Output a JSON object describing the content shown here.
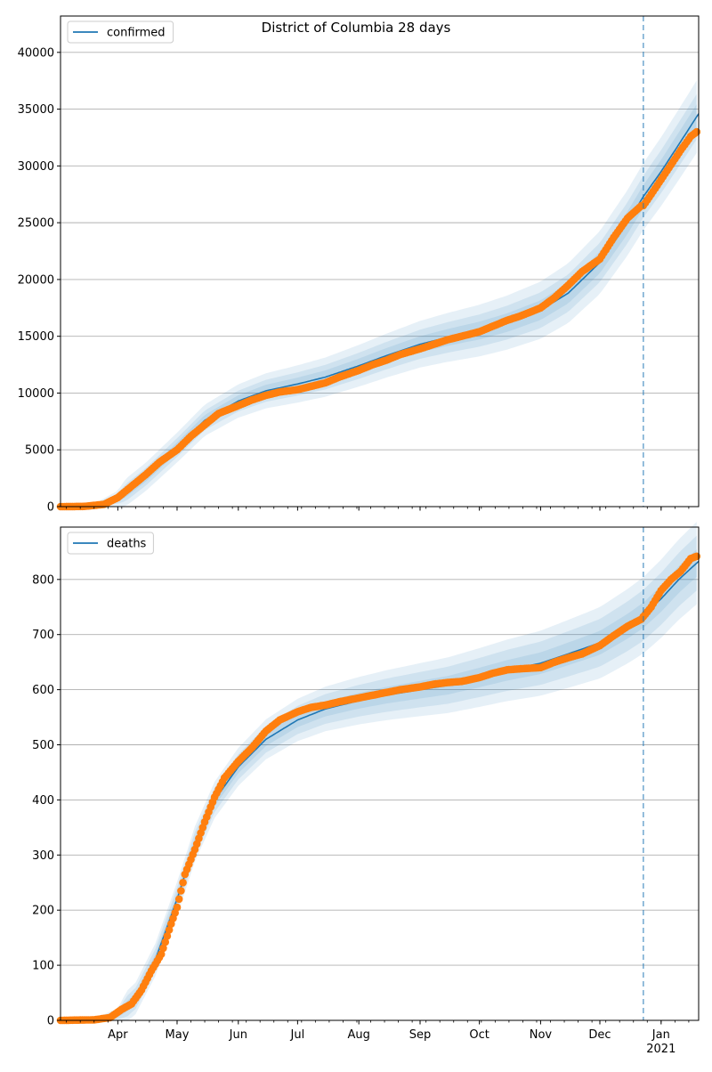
{
  "figure": {
    "title": "District of Columbia 28 days"
  },
  "colors": {
    "model_line": "#1f77b4",
    "band": "#1f77b4",
    "observed": "#ff7f0e",
    "forecast_marker": "#1f77b4",
    "grid": "#b0b0b0"
  },
  "chart_data": [
    {
      "type": "line",
      "legend": {
        "label": "confirmed",
        "placement": "top-left"
      },
      "grid": "y-only",
      "ylim": [
        0,
        43200
      ],
      "yticks": [
        0,
        5000,
        10000,
        15000,
        20000,
        25000,
        30000,
        35000,
        40000
      ],
      "xlim": [
        "2020-03-03",
        "2021-01-20"
      ],
      "forecast_start": "2020-12-23",
      "model": {
        "x": [
          "2020-03-03",
          "2020-03-20",
          "2020-04-01",
          "2020-04-15",
          "2020-05-01",
          "2020-05-15",
          "2020-06-01",
          "2020-06-15",
          "2020-07-01",
          "2020-07-15",
          "2020-08-01",
          "2020-08-15",
          "2020-09-01",
          "2020-09-15",
          "2020-10-01",
          "2020-10-15",
          "2020-11-01",
          "2020-11-15",
          "2020-12-01",
          "2020-12-15",
          "2020-12-23",
          "2021-01-01",
          "2021-01-10",
          "2021-01-20"
        ],
        "y": [
          0,
          100,
          700,
          2600,
          5200,
          7600,
          9300,
          10200,
          10800,
          11400,
          12400,
          13300,
          14300,
          14900,
          15500,
          16200,
          17300,
          18800,
          21500,
          25000,
          27300,
          29500,
          31900,
          34600
        ],
        "band_widths": [
          3200,
          2000,
          1100
        ]
      },
      "observed": {
        "x": [
          "2020-03-03",
          "2020-03-15",
          "2020-03-25",
          "2020-04-01",
          "2020-04-08",
          "2020-04-15",
          "2020-04-22",
          "2020-05-01",
          "2020-05-08",
          "2020-05-15",
          "2020-05-22",
          "2020-06-01",
          "2020-06-08",
          "2020-06-15",
          "2020-06-22",
          "2020-07-01",
          "2020-07-08",
          "2020-07-15",
          "2020-07-22",
          "2020-08-01",
          "2020-08-08",
          "2020-08-15",
          "2020-08-22",
          "2020-09-01",
          "2020-09-08",
          "2020-09-15",
          "2020-09-22",
          "2020-10-01",
          "2020-10-08",
          "2020-10-15",
          "2020-10-22",
          "2020-11-01",
          "2020-11-08",
          "2020-11-15",
          "2020-11-22",
          "2020-12-01",
          "2020-12-08",
          "2020-12-15",
          "2020-12-22",
          "2020-12-23",
          "2020-12-27",
          "2021-01-01",
          "2021-01-06",
          "2021-01-11",
          "2021-01-16",
          "2021-01-19"
        ],
        "y": [
          0,
          20,
          200,
          800,
          1800,
          2800,
          3900,
          5000,
          6200,
          7200,
          8200,
          8900,
          9400,
          9800,
          10100,
          10300,
          10600,
          10900,
          11400,
          12000,
          12500,
          12900,
          13400,
          13900,
          14300,
          14700,
          15000,
          15400,
          15900,
          16400,
          16800,
          17500,
          18400,
          19500,
          20700,
          21800,
          23700,
          25400,
          26500,
          26500,
          27500,
          28800,
          30100,
          31400,
          32600,
          33000
        ]
      }
    },
    {
      "type": "line",
      "legend": {
        "label": "deaths",
        "placement": "top-left"
      },
      "grid": "y-only",
      "ylim": [
        0,
        895
      ],
      "yticks": [
        0,
        100,
        200,
        300,
        400,
        500,
        600,
        700,
        800
      ],
      "xlim": [
        "2020-03-03",
        "2021-01-20"
      ],
      "xticks": [
        "Apr",
        "May",
        "Jun",
        "Jul",
        "Aug",
        "Sep",
        "Oct",
        "Nov",
        "Dec",
        "Jan"
      ],
      "xtick_dates": [
        "2020-04-01",
        "2020-05-01",
        "2020-06-01",
        "2020-07-01",
        "2020-08-01",
        "2020-09-01",
        "2020-10-01",
        "2020-11-01",
        "2020-12-01",
        "2021-01-01"
      ],
      "xtick_year": "2021",
      "forecast_start": "2020-12-23",
      "model": {
        "x": [
          "2020-03-03",
          "2020-03-20",
          "2020-04-01",
          "2020-04-10",
          "2020-04-20",
          "2020-05-01",
          "2020-05-10",
          "2020-05-20",
          "2020-06-01",
          "2020-06-15",
          "2020-07-01",
          "2020-07-15",
          "2020-08-01",
          "2020-08-15",
          "2020-09-01",
          "2020-09-15",
          "2020-10-01",
          "2020-10-15",
          "2020-11-01",
          "2020-11-15",
          "2020-12-01",
          "2020-12-15",
          "2020-12-23",
          "2021-01-01",
          "2021-01-10",
          "2021-01-20"
        ],
        "y": [
          0,
          1,
          10,
          40,
          110,
          220,
          320,
          400,
          460,
          510,
          545,
          565,
          580,
          590,
          600,
          608,
          622,
          635,
          648,
          665,
          685,
          715,
          735,
          765,
          800,
          833
        ],
        "band_widths": [
          75,
          50,
          25
        ]
      },
      "observed": {
        "x": [
          "2020-03-03",
          "2020-03-20",
          "2020-03-28",
          "2020-04-03",
          "2020-04-08",
          "2020-04-13",
          "2020-04-18",
          "2020-04-23",
          "2020-04-28",
          "2020-05-01",
          "2020-05-05",
          "2020-05-10",
          "2020-05-15",
          "2020-05-20",
          "2020-05-25",
          "2020-06-01",
          "2020-06-08",
          "2020-06-15",
          "2020-06-22",
          "2020-07-01",
          "2020-07-08",
          "2020-07-15",
          "2020-07-22",
          "2020-08-01",
          "2020-08-08",
          "2020-08-15",
          "2020-08-22",
          "2020-09-01",
          "2020-09-08",
          "2020-09-15",
          "2020-09-22",
          "2020-10-01",
          "2020-10-08",
          "2020-10-15",
          "2020-10-22",
          "2020-11-01",
          "2020-11-08",
          "2020-11-15",
          "2020-11-22",
          "2020-12-01",
          "2020-12-08",
          "2020-12-15",
          "2020-12-22",
          "2020-12-27",
          "2021-01-01",
          "2021-01-06",
          "2021-01-11",
          "2021-01-16",
          "2021-01-19"
        ],
        "y": [
          0,
          1,
          5,
          20,
          30,
          55,
          90,
          120,
          175,
          205,
          265,
          310,
          360,
          405,
          440,
          470,
          495,
          525,
          545,
          560,
          568,
          572,
          578,
          585,
          590,
          595,
          600,
          605,
          610,
          613,
          615,
          622,
          630,
          636,
          638,
          640,
          650,
          658,
          665,
          680,
          698,
          715,
          728,
          750,
          780,
          800,
          815,
          838,
          842
        ]
      }
    }
  ]
}
